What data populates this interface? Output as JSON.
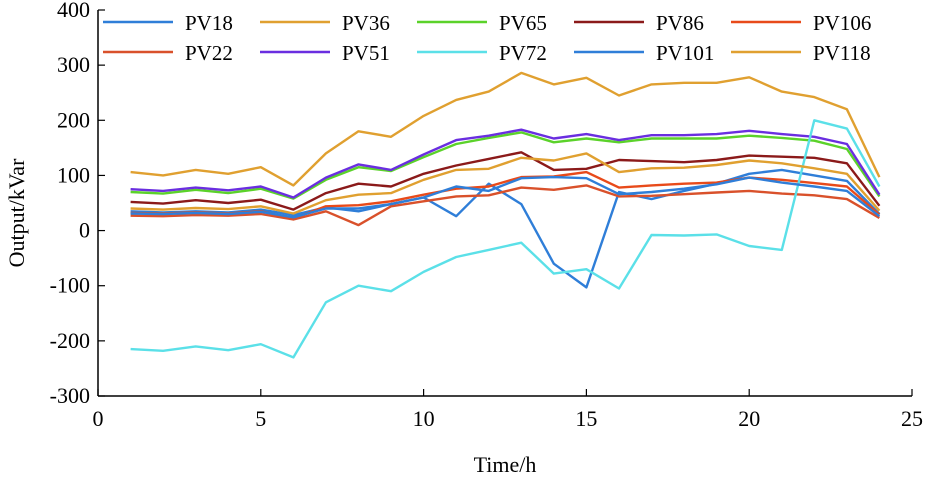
{
  "chart_data": {
    "type": "line",
    "title": "",
    "xlabel": "Time/h",
    "ylabel": "Output/kVar",
    "xlim": [
      0,
      25
    ],
    "ylim": [
      -300,
      400
    ],
    "xticks": [
      0,
      5,
      10,
      15,
      20,
      25
    ],
    "yticks": [
      -300,
      -200,
      -100,
      0,
      100,
      200,
      300,
      400
    ],
    "grid": false,
    "legend_position": "top",
    "x": [
      1,
      2,
      3,
      4,
      5,
      6,
      7,
      8,
      9,
      10,
      11,
      12,
      13,
      14,
      15,
      16,
      17,
      18,
      19,
      20,
      21,
      22,
      23,
      24
    ],
    "series": [
      {
        "name": "PV18",
        "color": "#2f7ed8",
        "values": [
          35,
          33,
          35,
          33,
          38,
          28,
          42,
          35,
          48,
          60,
          26,
          85,
          48,
          -60,
          -103,
          70,
          57,
          72,
          85,
          103,
          110,
          100,
          90,
          30
        ]
      },
      {
        "name": "PV36",
        "color": "#e0a030",
        "values": [
          106,
          100,
          110,
          103,
          115,
          82,
          140,
          180,
          170,
          208,
          237,
          252,
          286,
          265,
          277,
          245,
          265,
          268,
          268,
          278,
          252,
          242,
          220,
          97
        ]
      },
      {
        "name": "PV65",
        "color": "#5bd22a",
        "values": [
          70,
          67,
          74,
          68,
          76,
          58,
          92,
          115,
          108,
          133,
          157,
          168,
          178,
          160,
          167,
          160,
          167,
          167,
          167,
          172,
          168,
          163,
          148,
          62
        ]
      },
      {
        "name": "PV86",
        "color": "#8b1a1a",
        "values": [
          52,
          49,
          55,
          50,
          56,
          38,
          68,
          85,
          80,
          103,
          118,
          130,
          142,
          110,
          112,
          128,
          126,
          124,
          128,
          136,
          134,
          132,
          122,
          45
        ]
      },
      {
        "name": "PV106",
        "color": "#e84a1a",
        "values": [
          32,
          31,
          33,
          31,
          35,
          22,
          44,
          46,
          53,
          65,
          76,
          80,
          97,
          98,
          106,
          78,
          82,
          85,
          87,
          96,
          92,
          86,
          80,
          29
        ]
      },
      {
        "name": "PV22",
        "color": "#d9512b",
        "values": [
          27,
          26,
          28,
          27,
          30,
          20,
          35,
          10,
          44,
          53,
          62,
          64,
          78,
          74,
          82,
          62,
          63,
          66,
          69,
          72,
          67,
          64,
          57,
          23
        ]
      },
      {
        "name": "PV51",
        "color": "#6a2ee0",
        "values": [
          75,
          72,
          78,
          73,
          80,
          60,
          96,
          120,
          110,
          138,
          164,
          172,
          183,
          167,
          175,
          164,
          173,
          173,
          175,
          181,
          175,
          170,
          157,
          65
        ]
      },
      {
        "name": "PV72",
        "color": "#5be0e8",
        "values": [
          -215,
          -218,
          -210,
          -217,
          -206,
          -230,
          -130,
          -100,
          -110,
          -75,
          -48,
          -35,
          -22,
          -78,
          -70,
          -105,
          -8,
          -9,
          -7,
          -28,
          -35,
          200,
          185,
          80
        ]
      },
      {
        "name": "PV101",
        "color": "#2f7ed8",
        "values": [
          31,
          30,
          32,
          30,
          34,
          24,
          40,
          40,
          48,
          60,
          80,
          72,
          95,
          97,
          95,
          66,
          70,
          76,
          84,
          96,
          87,
          80,
          72,
          26
        ]
      },
      {
        "name": "PV118",
        "color": "#e0a030",
        "values": [
          40,
          38,
          41,
          39,
          44,
          31,
          55,
          65,
          68,
          92,
          110,
          112,
          132,
          127,
          140,
          106,
          113,
          114,
          119,
          127,
          122,
          113,
          103,
          36
        ]
      }
    ]
  }
}
